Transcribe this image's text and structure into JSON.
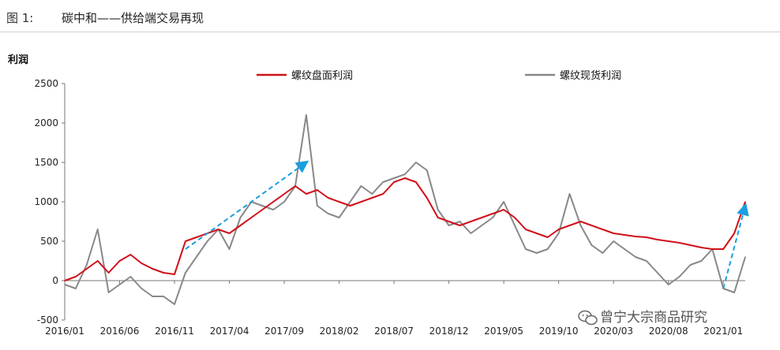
{
  "figure": {
    "label": "图 1:",
    "title": "碳中和——供给端交易再现"
  },
  "watermark": {
    "text": "曾宁大宗商品研究",
    "icon": "wechat-icon"
  },
  "chart_data": {
    "type": "line",
    "ylabel": "利润",
    "xlabel": "",
    "ylim": [
      -500,
      2500
    ],
    "yticks": [
      -500,
      0,
      500,
      1000,
      1500,
      2000,
      2500
    ],
    "xticks": [
      "2016/01",
      "2016/06",
      "2016/11",
      "2017/04",
      "2017/09",
      "2018/02",
      "2018/07",
      "2018/12",
      "2019/05",
      "2019/10",
      "2020/03",
      "2020/08",
      "2021/01"
    ],
    "x_range": [
      "2016/01",
      "2021/03"
    ],
    "legend_position": "top",
    "grid": false,
    "series": [
      {
        "name": "螺纹盘面利润",
        "color": "#d0101a",
        "x": [
          "2016/01",
          "2016/02",
          "2016/03",
          "2016/04",
          "2016/05",
          "2016/06",
          "2016/07",
          "2016/08",
          "2016/09",
          "2016/10",
          "2016/11",
          "2016/12",
          "2017/01",
          "2017/02",
          "2017/03",
          "2017/04",
          "2017/05",
          "2017/06",
          "2017/07",
          "2017/08",
          "2017/09",
          "2017/10",
          "2017/11",
          "2017/12",
          "2018/01",
          "2018/02",
          "2018/03",
          "2018/04",
          "2018/05",
          "2018/06",
          "2018/07",
          "2018/08",
          "2018/09",
          "2018/10",
          "2018/11",
          "2018/12",
          "2019/01",
          "2019/02",
          "2019/03",
          "2019/04",
          "2019/05",
          "2019/06",
          "2019/07",
          "2019/08",
          "2019/09",
          "2019/10",
          "2019/11",
          "2019/12",
          "2020/01",
          "2020/02",
          "2020/03",
          "2020/04",
          "2020/05",
          "2020/06",
          "2020/07",
          "2020/08",
          "2020/09",
          "2020/10",
          "2020/11",
          "2020/12",
          "2021/01",
          "2021/02",
          "2021/03"
        ],
        "values": [
          0,
          50,
          150,
          250,
          100,
          250,
          330,
          220,
          150,
          100,
          80,
          500,
          550,
          600,
          650,
          600,
          700,
          800,
          900,
          1000,
          1100,
          1200,
          1100,
          1150,
          1050,
          1000,
          950,
          1000,
          1050,
          1100,
          1250,
          1300,
          1250,
          1050,
          800,
          750,
          700,
          750,
          800,
          850,
          900,
          800,
          650,
          600,
          550,
          650,
          700,
          750,
          700,
          650,
          600,
          580,
          560,
          550,
          520,
          500,
          480,
          450,
          420,
          400,
          400,
          600,
          1000
        ]
      },
      {
        "name": "螺纹现货利润",
        "color": "#888888",
        "x": [
          "2016/01",
          "2016/02",
          "2016/03",
          "2016/04",
          "2016/05",
          "2016/06",
          "2016/07",
          "2016/08",
          "2016/09",
          "2016/10",
          "2016/11",
          "2016/12",
          "2017/01",
          "2017/02",
          "2017/03",
          "2017/04",
          "2017/05",
          "2017/06",
          "2017/07",
          "2017/08",
          "2017/09",
          "2017/10",
          "2017/11",
          "2017/12",
          "2018/01",
          "2018/02",
          "2018/03",
          "2018/04",
          "2018/05",
          "2018/06",
          "2018/07",
          "2018/08",
          "2018/09",
          "2018/10",
          "2018/11",
          "2018/12",
          "2019/01",
          "2019/02",
          "2019/03",
          "2019/04",
          "2019/05",
          "2019/06",
          "2019/07",
          "2019/08",
          "2019/09",
          "2019/10",
          "2019/11",
          "2019/12",
          "2020/01",
          "2020/02",
          "2020/03",
          "2020/04",
          "2020/05",
          "2020/06",
          "2020/07",
          "2020/08",
          "2020/09",
          "2020/10",
          "2020/11",
          "2020/12",
          "2021/01",
          "2021/02",
          "2021/03"
        ],
        "values": [
          -50,
          -100,
          200,
          650,
          -150,
          -50,
          50,
          -100,
          -200,
          -200,
          -300,
          100,
          300,
          500,
          650,
          400,
          800,
          1000,
          950,
          900,
          1000,
          1200,
          2100,
          950,
          850,
          800,
          1000,
          1200,
          1100,
          1250,
          1300,
          1350,
          1500,
          1400,
          900,
          700,
          750,
          600,
          700,
          800,
          1000,
          700,
          400,
          350,
          400,
          600,
          1100,
          700,
          450,
          350,
          500,
          400,
          300,
          250,
          100,
          -50,
          50,
          200,
          250,
          400,
          -100,
          -150,
          300
        ]
      }
    ],
    "annotations": [
      {
        "type": "arrow",
        "from": [
          "2016/12",
          400
        ],
        "to": [
          "2017/11",
          1500
        ],
        "color": "#1a9ee0",
        "dashed": true
      },
      {
        "type": "arrow",
        "from": [
          "2021/01",
          -100
        ],
        "to": [
          "2021/03",
          950
        ],
        "color": "#1a9ee0",
        "dashed": true
      }
    ]
  }
}
